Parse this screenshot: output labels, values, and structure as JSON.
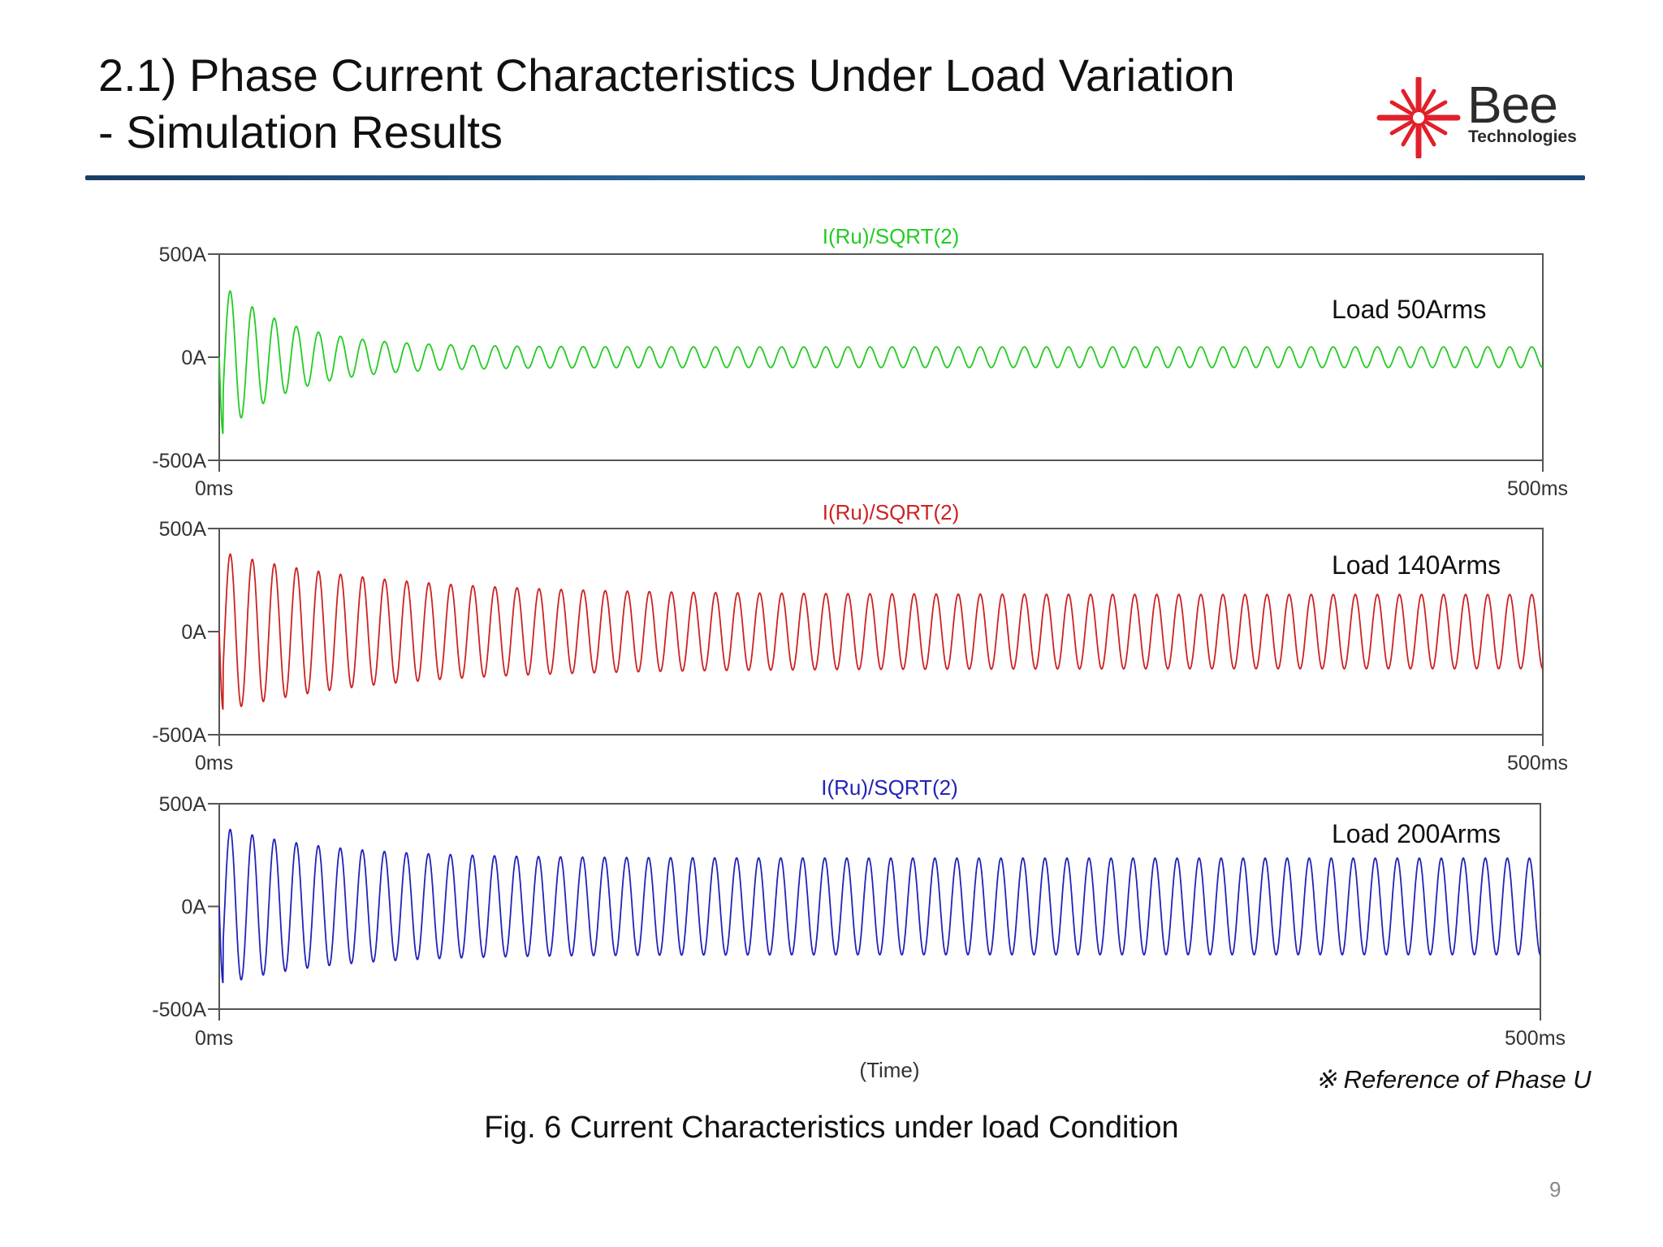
{
  "slide": {
    "title_line1": "2.1) Phase Current Characteristics Under Load Variation",
    "title_line2": "- Simulation Results",
    "logo_word": "Bee",
    "logo_sub": "Technologies",
    "caption": "Fig. 6 Current Characteristics under load Condition",
    "reference": "※ Reference of Phase U",
    "page_number": "9",
    "accent_color": "#e0202a"
  },
  "chart_data": [
    {
      "type": "line",
      "title": "I(Ru)/SQRT(2)",
      "annotation": "Load 50Arms",
      "color": "#22cc22",
      "xlabel": "",
      "xlim": [
        0,
        500
      ],
      "ylim": [
        -500,
        500
      ],
      "x_ticks": [
        "0ms",
        "500ms"
      ],
      "y_ticks": [
        "500A",
        "0A",
        "-500A"
      ],
      "steady_amplitude": 50,
      "initial_peak": 370,
      "initial_trough": -390,
      "frequency_cycles": 60
    },
    {
      "type": "line",
      "title": "I(Ru)/SQRT(2)",
      "annotation": "Load 140Arms",
      "color": "#cc2222",
      "xlabel": "",
      "xlim": [
        0,
        500
      ],
      "ylim": [
        -500,
        500
      ],
      "x_ticks": [
        "0ms",
        "500ms"
      ],
      "y_ticks": [
        "500A",
        "0A",
        "-500A"
      ],
      "steady_amplitude": 180,
      "initial_peak": 390,
      "initial_trough": -390,
      "frequency_cycles": 60
    },
    {
      "type": "line",
      "title": "I(Ru)/SQRT(2)",
      "annotation": "Load 200Arms",
      "color": "#2222bb",
      "xlabel": "(Time)",
      "xlim": [
        0,
        500
      ],
      "ylim": [
        -500,
        500
      ],
      "x_ticks": [
        "0ms",
        "500ms"
      ],
      "y_ticks": [
        "500A",
        "0A",
        "-500A"
      ],
      "steady_amplitude": 235,
      "initial_peak": 390,
      "initial_trough": -385,
      "frequency_cycles": 60
    }
  ]
}
